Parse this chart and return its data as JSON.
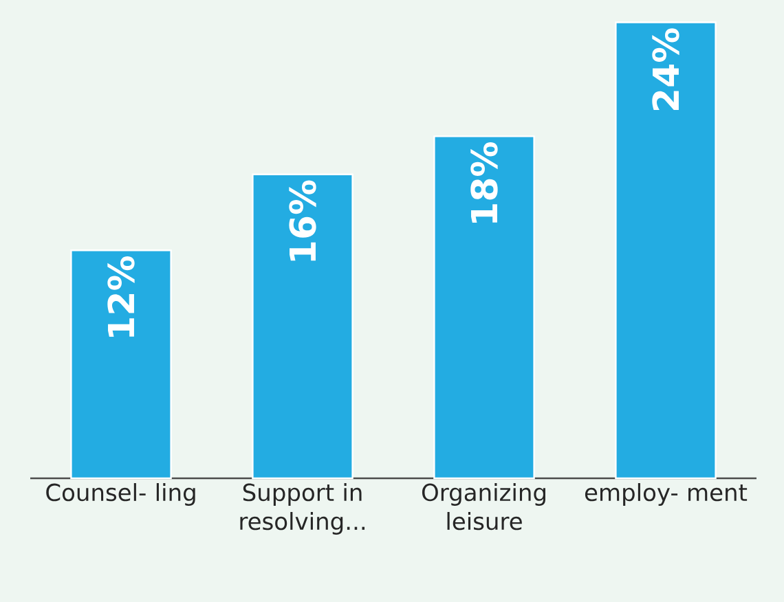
{
  "chart_data": {
    "type": "bar",
    "categories": [
      "Counsel- ling",
      "Support in resolving...",
      "Organizing leisure",
      "employ- ment"
    ],
    "values": [
      12,
      16,
      18,
      24
    ],
    "value_labels": [
      "12%",
      "16%",
      "18%",
      "24%"
    ],
    "color": "#23ace2"
  }
}
